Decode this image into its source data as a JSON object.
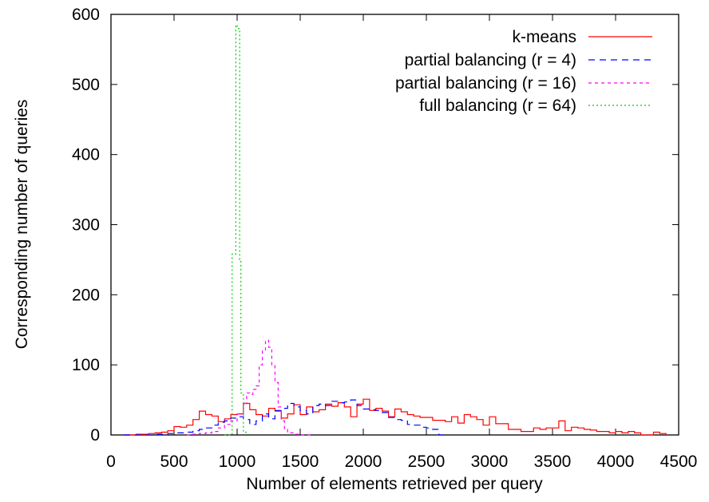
{
  "chart_data": {
    "type": "line",
    "title": "",
    "xlabel": "Number of elements retrieved per query",
    "ylabel": "Corresponding number of queries",
    "xlim": [
      0,
      4500
    ],
    "ylim": [
      0,
      600
    ],
    "xticks": [
      0,
      500,
      1000,
      1500,
      2000,
      2500,
      3000,
      3500,
      4000,
      4500
    ],
    "yticks": [
      0,
      100,
      200,
      300,
      400,
      500,
      600
    ],
    "grid": false,
    "legend_position": "top-right",
    "series": [
      {
        "name": "k-means",
        "color": "#ff0000",
        "dash": "solid",
        "x": [
          100,
          150,
          200,
          250,
          300,
          350,
          400,
          450,
          500,
          550,
          600,
          650,
          700,
          750,
          800,
          850,
          900,
          950,
          1000,
          1050,
          1100,
          1150,
          1200,
          1250,
          1300,
          1350,
          1400,
          1450,
          1500,
          1550,
          1600,
          1650,
          1700,
          1750,
          1800,
          1850,
          1900,
          1950,
          2000,
          2050,
          2100,
          2150,
          2200,
          2250,
          2300,
          2350,
          2400,
          2450,
          2500,
          2550,
          2600,
          2650,
          2700,
          2750,
          2800,
          2850,
          2900,
          2950,
          3000,
          3050,
          3100,
          3150,
          3200,
          3250,
          3300,
          3350,
          3400,
          3450,
          3500,
          3550,
          3600,
          3650,
          3700,
          3750,
          3800,
          3850,
          3900,
          3950,
          4000,
          4050,
          4100,
          4150,
          4200,
          4250,
          4300,
          4350,
          4400
        ],
        "y": [
          0,
          0,
          1,
          1,
          2,
          3,
          4,
          6,
          12,
          11,
          14,
          22,
          34,
          29,
          27,
          19,
          23,
          29,
          30,
          45,
          36,
          29,
          27,
          38,
          34,
          24,
          30,
          43,
          29,
          40,
          33,
          36,
          44,
          41,
          46,
          40,
          26,
          44,
          51,
          35,
          38,
          34,
          26,
          37,
          33,
          29,
          27,
          25,
          25,
          21,
          21,
          19,
          26,
          17,
          29,
          26,
          22,
          14,
          26,
          16,
          16,
          8,
          8,
          5,
          5,
          10,
          8,
          10,
          10,
          20,
          6,
          11,
          10,
          8,
          7,
          5,
          5,
          3,
          5,
          3,
          5,
          3,
          0,
          0,
          4,
          2,
          0
        ]
      },
      {
        "name": "partial balancing (r = 4)",
        "color": "#0000ff",
        "dash": "8,6",
        "x": [
          100,
          150,
          200,
          250,
          300,
          350,
          400,
          450,
          500,
          550,
          600,
          650,
          700,
          750,
          800,
          850,
          900,
          950,
          1000,
          1050,
          1100,
          1150,
          1200,
          1250,
          1300,
          1350,
          1400,
          1450,
          1500,
          1550,
          1600,
          1650,
          1700,
          1750,
          1800,
          1850,
          1900,
          1950,
          2000,
          2050,
          2100,
          2150,
          2200,
          2250,
          2300,
          2350,
          2400,
          2450,
          2500,
          2550,
          2600,
          2650
        ],
        "y": [
          0,
          0,
          0,
          0,
          0,
          1,
          1,
          2,
          3,
          3,
          4,
          6,
          8,
          10,
          14,
          18,
          20,
          24,
          26,
          22,
          15,
          20,
          30,
          23,
          35,
          38,
          45,
          40,
          35,
          30,
          42,
          44,
          42,
          48,
          46,
          47,
          50,
          42,
          37,
          36,
          35,
          32,
          25,
          22,
          21,
          15,
          14,
          11,
          10,
          8,
          0,
          0
        ]
      },
      {
        "name": "partial balancing (r = 16)",
        "color": "#ff00ff",
        "dash": "4,4",
        "x": [
          600,
          650,
          700,
          750,
          800,
          850,
          900,
          950,
          1000,
          1050,
          1075,
          1100,
          1125,
          1150,
          1175,
          1200,
          1225,
          1250,
          1275,
          1300,
          1325,
          1350,
          1375,
          1400,
          1450,
          1500,
          1550,
          1600
        ],
        "y": [
          0,
          1,
          2,
          3,
          5,
          10,
          15,
          20,
          30,
          45,
          60,
          58,
          65,
          70,
          100,
          120,
          135,
          125,
          100,
          75,
          40,
          20,
          8,
          3,
          1,
          0,
          0,
          0
        ]
      },
      {
        "name": "full balancing (r = 64)",
        "color": "#00cc00",
        "dash": "2,3",
        "x": [
          900,
          940,
          960,
          980,
          990,
          1000,
          1010,
          1020,
          1030,
          1050,
          1070
        ],
        "y": [
          0,
          0,
          258,
          258,
          585,
          580,
          580,
          250,
          60,
          4,
          0
        ]
      }
    ]
  }
}
